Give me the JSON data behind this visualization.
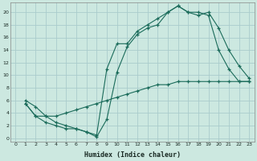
{
  "xlabel": "Humidex (Indice chaleur)",
  "background_color": "#cce8e0",
  "grid_color": "#aacccc",
  "line_color": "#1a6b5a",
  "xlim": [
    -0.5,
    23.5
  ],
  "ylim": [
    -0.5,
    21.5
  ],
  "xticks": [
    0,
    1,
    2,
    3,
    4,
    5,
    6,
    7,
    8,
    9,
    10,
    11,
    12,
    13,
    14,
    15,
    16,
    17,
    18,
    19,
    20,
    21,
    22,
    23
  ],
  "yticks": [
    0,
    2,
    4,
    6,
    8,
    10,
    12,
    14,
    16,
    18,
    20
  ],
  "line1_x": [
    1,
    2,
    3,
    4,
    5,
    6,
    7,
    8,
    9,
    10,
    11,
    12,
    13,
    14,
    15,
    16,
    17,
    18,
    19,
    20,
    21,
    22,
    23
  ],
  "line1_y": [
    6,
    5,
    3.5,
    2.5,
    2,
    1.5,
    1,
    0.5,
    11,
    15,
    15,
    17,
    18,
    19,
    20,
    21,
    20,
    20,
    19.5,
    14,
    11,
    9,
    9
  ],
  "line2_x": [
    1,
    2,
    3,
    4,
    5,
    6,
    7,
    8,
    9,
    10,
    11,
    12,
    13,
    14,
    15,
    16,
    17,
    18,
    19,
    20,
    21,
    22,
    23
  ],
  "line2_y": [
    5.5,
    3.5,
    2.5,
    2,
    1.5,
    1.5,
    1,
    0.2,
    3,
    10.5,
    14.5,
    16.5,
    17.5,
    18,
    20,
    21,
    20,
    19.5,
    20,
    17.5,
    14,
    11.5,
    9.5
  ],
  "line3_x": [
    1,
    2,
    3,
    4,
    5,
    6,
    7,
    8,
    9,
    10,
    11,
    12,
    13,
    14,
    15,
    16,
    17,
    18,
    19,
    20,
    21,
    22,
    23
  ],
  "line3_y": [
    5.5,
    3.5,
    3.5,
    3.5,
    4,
    4.5,
    5,
    5.5,
    6,
    6.5,
    7,
    7.5,
    8,
    8.5,
    8.5,
    9,
    9,
    9,
    9,
    9,
    9,
    9,
    9
  ]
}
